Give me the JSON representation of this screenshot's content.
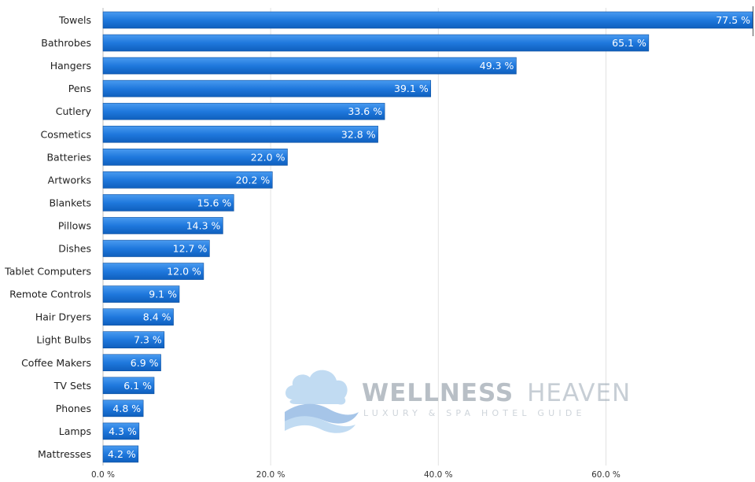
{
  "chart_data": {
    "type": "bar",
    "orientation": "horizontal",
    "categories": [
      "Towels",
      "Bathrobes",
      "Hangers",
      "Pens",
      "Cutlery",
      "Cosmetics",
      "Batteries",
      "Artworks",
      "Blankets",
      "Pillows",
      "Dishes",
      "Tablet Computers",
      "Remote Controls",
      "Hair Dryers",
      "Light Bulbs",
      "Coffee Makers",
      "TV Sets",
      "Phones",
      "Lamps",
      "Mattresses"
    ],
    "values": [
      77.5,
      65.1,
      49.3,
      39.1,
      33.6,
      32.8,
      22.0,
      20.2,
      15.6,
      14.3,
      12.7,
      12.0,
      9.1,
      8.4,
      7.3,
      6.9,
      6.1,
      4.8,
      4.3,
      4.2
    ],
    "value_labels": [
      "77.5 %",
      "65.1 %",
      "49.3 %",
      "39.1 %",
      "33.6 %",
      "32.8 %",
      "22.0 %",
      "20.2 %",
      "15.6 %",
      "14.3 %",
      "12.7 %",
      "12.0 %",
      "9.1 %",
      "8.4 %",
      "7.3 %",
      "6.9 %",
      "6.1 %",
      "4.8 %",
      "4.3 %",
      "4.2 %"
    ],
    "xlim": [
      0,
      77.5
    ],
    "ticks": [
      0,
      20,
      40,
      60
    ],
    "tick_labels": [
      "0.0 %",
      "20.0 %",
      "40.0 %",
      "60.0 %"
    ],
    "grid": true,
    "bar_color": "#1a73d6",
    "title": "",
    "xlabel": "",
    "ylabel": ""
  },
  "watermark": {
    "logo_icon": "cloud-wave-icon",
    "title_bold": "WELLNESS",
    "title_light": "HEAVEN",
    "subtitle": "LUXURY & SPA HOTEL GUIDE"
  }
}
